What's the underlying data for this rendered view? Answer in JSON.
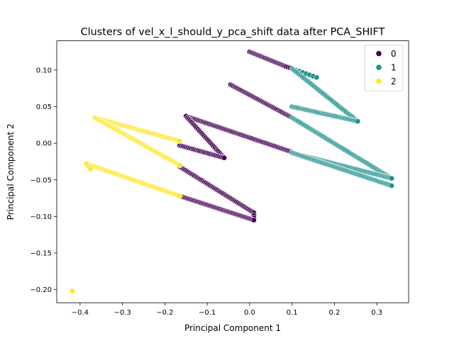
{
  "chart_data": {
    "type": "scatter",
    "title": "Clusters of vel_x_l_should_y_pca_shift data after PCA_SHIFT",
    "xlabel": "Principal Component 1",
    "ylabel": "Principal Component 2",
    "xlim": [
      -0.455,
      0.375
    ],
    "ylim": [
      -0.218,
      0.14
    ],
    "xticks": [
      -0.4,
      -0.3,
      -0.2,
      -0.1,
      0.0,
      0.1,
      0.2,
      0.3
    ],
    "xtick_labels": [
      "−0.4",
      "−0.3",
      "−0.2",
      "−0.1",
      "0.0",
      "0.1",
      "0.2",
      "0.3"
    ],
    "yticks": [
      -0.2,
      -0.15,
      -0.1,
      -0.05,
      0.0,
      0.05,
      0.1
    ],
    "ytick_labels": [
      "−0.20",
      "−0.15",
      "−0.10",
      "−0.05",
      "0.00",
      "0.05",
      "0.10"
    ],
    "grid": false,
    "legend": {
      "placement": "top-right",
      "entries": [
        {
          "label": "0",
          "color": "#440154"
        },
        {
          "label": "1",
          "color": "#21918c"
        },
        {
          "label": "2",
          "color": "#fde725"
        }
      ]
    },
    "series": [
      {
        "name": "0",
        "color": "#440154",
        "segments": [
          {
            "from": [
              0.0,
              0.125
            ],
            "to": [
              0.085,
              0.105
            ],
            "n": 26
          },
          {
            "from": [
              0.085,
              0.105
            ],
            "to": [
              0.1,
              0.102
            ],
            "n": 4
          },
          {
            "from": [
              -0.045,
              0.08
            ],
            "to": [
              0.1,
              0.035
            ],
            "n": 44
          },
          {
            "from": [
              -0.15,
              0.037
            ],
            "to": [
              0.1,
              -0.012
            ],
            "n": 70
          },
          {
            "from": [
              -0.15,
              0.037
            ],
            "to": [
              -0.06,
              -0.02
            ],
            "n": 30
          },
          {
            "from": [
              -0.165,
              -0.003
            ],
            "to": [
              -0.06,
              -0.02
            ],
            "n": 28
          },
          {
            "from": [
              -0.165,
              -0.032
            ],
            "to": [
              0.01,
              -0.095
            ],
            "n": 52
          },
          {
            "from": [
              0.01,
              -0.095
            ],
            "to": [
              0.01,
              -0.105
            ],
            "n": 4
          },
          {
            "from": [
              -0.165,
              -0.072
            ],
            "to": [
              0.01,
              -0.105
            ],
            "n": 52
          }
        ]
      },
      {
        "name": "1",
        "color": "#21918c",
        "segments": [
          {
            "from": [
              0.1,
              0.102
            ],
            "to": [
              0.158,
              0.09
            ],
            "n": 8
          },
          {
            "from": [
              0.1,
              0.102
            ],
            "to": [
              0.255,
              0.03
            ],
            "n": 46
          },
          {
            "from": [
              0.1,
              0.05
            ],
            "to": [
              0.255,
              0.03
            ],
            "n": 44
          },
          {
            "from": [
              0.1,
              0.035
            ],
            "to": [
              0.335,
              -0.048
            ],
            "n": 70
          },
          {
            "from": [
              0.1,
              -0.013
            ],
            "to": [
              0.335,
              -0.048
            ],
            "n": 66
          },
          {
            "from": [
              0.1,
              -0.013
            ],
            "to": [
              0.335,
              -0.058
            ],
            "n": 68
          }
        ]
      },
      {
        "name": "2",
        "color": "#fde725",
        "segments": [
          {
            "from": [
              -0.365,
              0.035
            ],
            "to": [
              -0.165,
              0.003
            ],
            "n": 58
          },
          {
            "from": [
              -0.365,
              0.035
            ],
            "to": [
              -0.165,
              -0.03
            ],
            "n": 62
          },
          {
            "from": [
              -0.385,
              -0.028
            ],
            "to": [
              -0.165,
              -0.072
            ],
            "n": 64
          },
          {
            "from": [
              -0.385,
              -0.028
            ],
            "to": [
              -0.375,
              -0.035
            ],
            "n": 3
          },
          {
            "from": [
              -0.418,
              -0.202
            ],
            "to": [
              -0.418,
              -0.202
            ],
            "n": 1
          }
        ]
      }
    ]
  }
}
